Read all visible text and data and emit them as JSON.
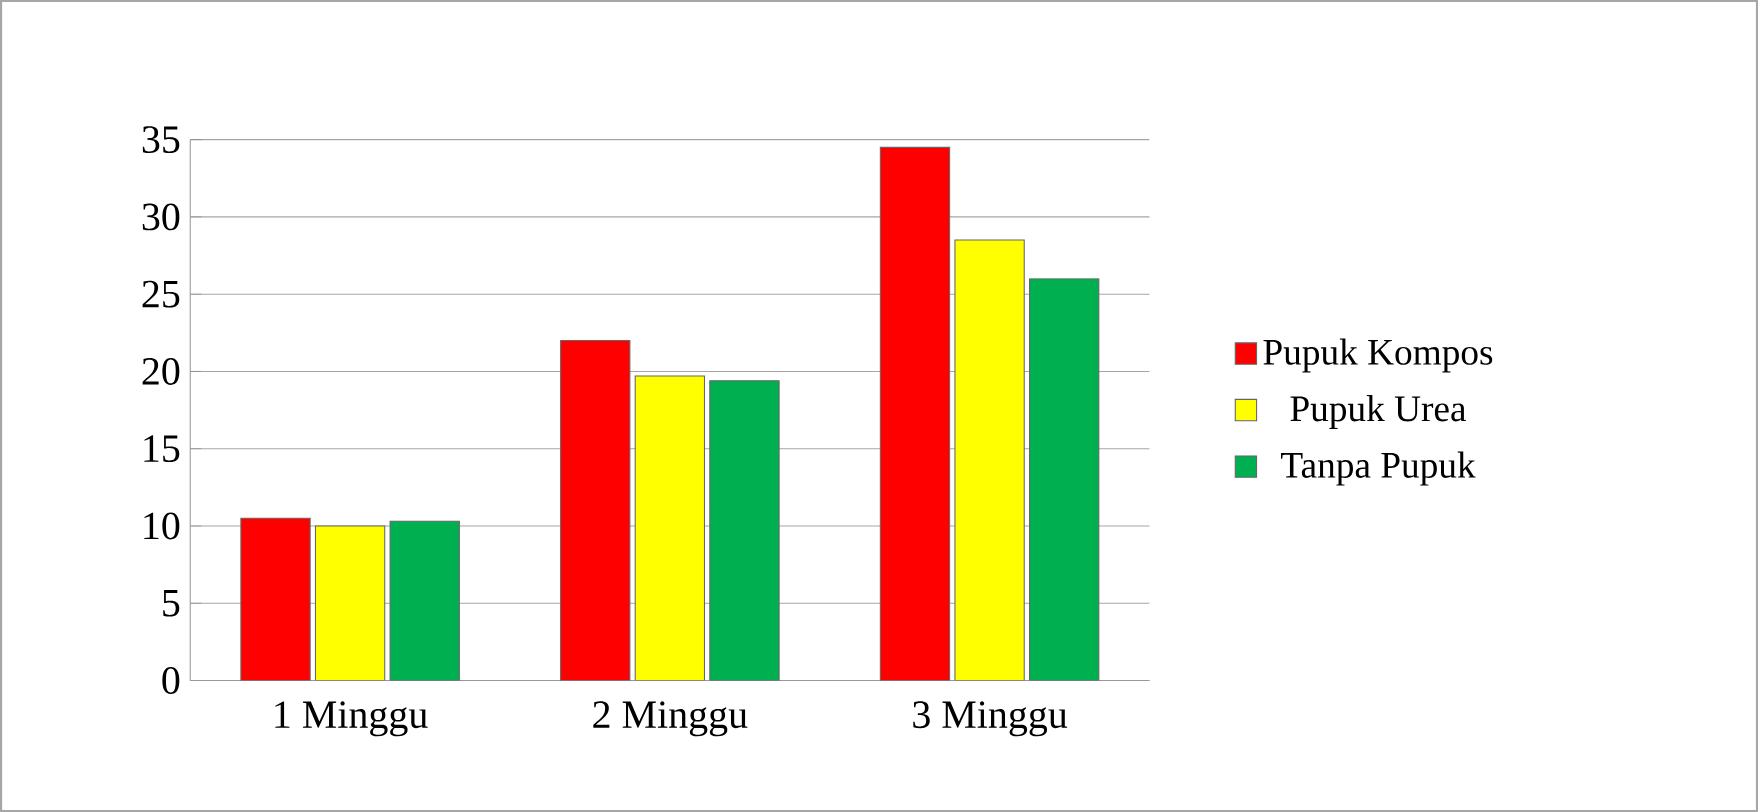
{
  "chart_data": {
    "type": "bar",
    "categories": [
      "1 Minggu",
      "2 Minggu",
      "3 Minggu"
    ],
    "series": [
      {
        "name": "Pupuk Kompos",
        "color": "#ff0000",
        "values": [
          10.5,
          22,
          34.5
        ]
      },
      {
        "name": "Pupuk Urea",
        "color": "#ffff00",
        "values": [
          10,
          19.7,
          28.5
        ]
      },
      {
        "name": "Tanpa Pupuk",
        "color": "#00b050",
        "values": [
          10.3,
          19.4,
          26
        ]
      }
    ],
    "ylim": [
      0,
      35
    ],
    "yticks": [
      0,
      5,
      10,
      15,
      20,
      25,
      30,
      35
    ],
    "grid": "y",
    "legend": "right"
  }
}
